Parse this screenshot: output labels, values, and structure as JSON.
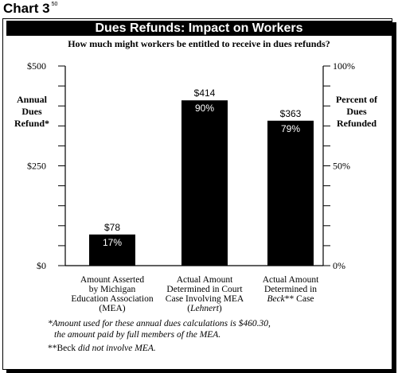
{
  "chart_number_label": "Chart 3",
  "chart_number_ref": "50",
  "chart_data": {
    "type": "bar",
    "title": "Dues Refunds: Impact on Workers",
    "subtitle": "How much might workers be entitled to receive in dues refunds?",
    "ylabel_left": [
      "Annual",
      "Dues",
      "Refund*"
    ],
    "ylabel_right": [
      "Percent of",
      "Dues",
      "Refunded"
    ],
    "ylim": [
      0,
      500
    ],
    "left_ticks": [
      {
        "value": 0,
        "label": "$0"
      },
      {
        "value": 250,
        "label": "$250"
      },
      {
        "value": 500,
        "label": "$500"
      }
    ],
    "right_ticks": [
      {
        "value": 0,
        "label": "0%"
      },
      {
        "value": 50,
        "label": "50%"
      },
      {
        "value": 100,
        "label": "100%"
      }
    ],
    "percent_ylim": [
      0,
      100
    ],
    "minor_tick_step": 50,
    "categories": [
      [
        "Amount Asserted",
        "by Michigan",
        "Education Association",
        "(MEA)"
      ],
      [
        "Actual Amount",
        "Determined in Court",
        "Case Involving MEA",
        "(Lehnert)"
      ],
      [
        "Actual Amount",
        "Determined in",
        "Beck** Case"
      ]
    ],
    "values": [
      78,
      414,
      363
    ],
    "value_labels": [
      "$78",
      "$414",
      "$363"
    ],
    "percent_labels": [
      "17%",
      "90%",
      "79%"
    ],
    "bar_color": "#000000",
    "grid": false
  },
  "footnotes": {
    "line1": "*Amount used for these annual dues calculations is $460.30,",
    "line2": "the amount paid by full members of the MEA.",
    "line3_prefix": "**",
    "line3_word": "Beck",
    "line3_rest": " did not involve MEA."
  }
}
